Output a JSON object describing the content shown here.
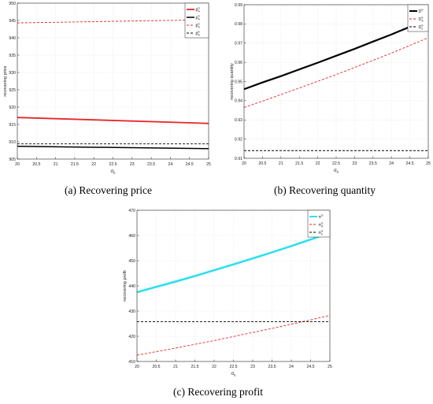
{
  "figures": [
    {
      "caption": "(a) Recovering price",
      "chart_data": {
        "type": "line",
        "xlabel": "σ_h",
        "xlabel_main": "σ",
        "xlabel_sub": "h",
        "ylabel": "recovering price",
        "xlim": [
          20,
          25
        ],
        "ylim": [
          905,
          950
        ],
        "xticks": [
          "20",
          "20.5",
          "21",
          "21.5",
          "22",
          "22.5",
          "23",
          "23.5",
          "24",
          "24.5",
          "25"
        ],
        "yticks": [
          "905",
          "910",
          "915",
          "920",
          "925",
          "930",
          "935",
          "940",
          "945",
          "950"
        ],
        "grid": true,
        "legend_position": "top-right",
        "legend_box_width": 30,
        "series": [
          {
            "name": "p̄_A^{S}",
            "main": "p̄",
            "sup": "S",
            "sub": "A",
            "color": "#e8262a",
            "dash": "",
            "width": 1.8,
            "x": [
              20,
              25
            ],
            "y": [
              917.0,
              915.3
            ]
          },
          {
            "name": "p_A^{S}",
            "main": "p",
            "sup": "S",
            "sub": "A",
            "color": "#000000",
            "dash": "",
            "width": 1.5,
            "x": [
              20,
              25
            ],
            "y": [
              908.7,
              908.0
            ]
          },
          {
            "name": "p̄_A^{S}",
            "main": "p̄",
            "sup": "S",
            "sub": "A",
            "color": "#e8262a",
            "dash": "3,2",
            "width": 0.9,
            "x": [
              20,
              25
            ],
            "y": [
              944.3,
              945.2
            ]
          },
          {
            "name": "p̂_A^{S}",
            "main": "p̂",
            "sup": "S",
            "sub": "A",
            "color": "#000000",
            "dash": "3,2",
            "width": 0.9,
            "x": [
              20,
              25
            ],
            "y": [
              909.4,
              909.4
            ]
          }
        ]
      }
    },
    {
      "caption": "(b) Recovering quantity",
      "chart_data": {
        "type": "line",
        "xlabel": "σ_h",
        "xlabel_main": "σ",
        "xlabel_sub": "h",
        "ylabel": "recovering quantity",
        "xlim": [
          20,
          25
        ],
        "ylim": [
          0.91,
          0.99
        ],
        "xticks": [
          "20",
          "20.5",
          "21",
          "21.5",
          "22",
          "22.5",
          "23",
          "23.5",
          "24",
          "24.5",
          "25"
        ],
        "yticks": [
          "0.91",
          "0.92",
          "0.93",
          "0.94",
          "0.95",
          "0.96",
          "0.97",
          "0.98",
          "0.99"
        ],
        "grid": true,
        "legend_position": "top-right",
        "legend_box_width": 26,
        "series": [
          {
            "name": "D^{S}",
            "main": "D",
            "sup": "S",
            "sub": "",
            "color": "#000000",
            "dash": "",
            "width": 2.2,
            "x": [
              20,
              20.5,
              21,
              21.5,
              22,
              22.5,
              23,
              23.5,
              24,
              24.5,
              25
            ],
            "y": [
              0.946,
              0.9495,
              0.9528,
              0.9563,
              0.9598,
              0.9634,
              0.967,
              0.9708,
              0.9745,
              0.9785,
              0.9825
            ]
          },
          {
            "name": "D_A^{S}",
            "main": "D",
            "sup": "S",
            "sub": "A",
            "color": "#e8262a",
            "dash": "3,2",
            "width": 0.9,
            "x": [
              20,
              20.5,
              21,
              21.5,
              22,
              22.5,
              23,
              23.5,
              24,
              24.5,
              25
            ],
            "y": [
              0.9365,
              0.9398,
              0.9432,
              0.9466,
              0.9501,
              0.9536,
              0.9573,
              0.961,
              0.9648,
              0.9688,
              0.9728
            ]
          },
          {
            "name": "D_e^{S}",
            "main": "D",
            "sup": "S",
            "sub": "e",
            "color": "#000000",
            "dash": "3,2",
            "width": 0.9,
            "x": [
              20,
              25
            ],
            "y": [
              0.914,
              0.914
            ]
          }
        ]
      }
    },
    {
      "caption": "(c) Recovering profit",
      "chart_data": {
        "type": "line",
        "xlabel": "σ_h",
        "xlabel_main": "σ",
        "xlabel_sub": "h",
        "ylabel": "recovering profit",
        "xlim": [
          20,
          25
        ],
        "ylim": [
          410,
          470
        ],
        "xticks": [
          "20",
          "20.5",
          "21",
          "21.5",
          "22",
          "22.5",
          "23",
          "23.5",
          "24",
          "24.5",
          "25"
        ],
        "yticks": [
          "410",
          "420",
          "430",
          "440",
          "450",
          "460",
          "470"
        ],
        "grid": true,
        "legend_position": "top-right",
        "legend_box_width": 28,
        "series": [
          {
            "name": "π^{S}",
            "main": "π",
            "sup": "S",
            "sub": "",
            "color": "#2de0ee",
            "dash": "",
            "width": 2.6,
            "x": [
              20,
              20.5,
              21,
              21.5,
              22,
              22.5,
              23,
              23.5,
              24,
              24.5,
              25
            ],
            "y": [
              437.5,
              439.6,
              441.7,
              443.9,
              446.2,
              448.5,
              450.9,
              453.3,
              455.8,
              458.4,
              461.0
            ]
          },
          {
            "name": "π_A^{S}",
            "main": "π",
            "sup": "S",
            "sub": "A",
            "color": "#e8262a",
            "dash": "3,2",
            "width": 0.9,
            "x": [
              20,
              20.5,
              21,
              21.5,
              22,
              22.5,
              23,
              23.5,
              24,
              24.5,
              25
            ],
            "y": [
              412.5,
              413.9,
              415.3,
              416.8,
              418.3,
              419.9,
              421.5,
              423.1,
              424.8,
              426.5,
              428.3
            ]
          },
          {
            "name": "π_e^{S}",
            "main": "π",
            "sup": "S",
            "sub": "e",
            "color": "#000000",
            "dash": "3,2",
            "width": 0.9,
            "x": [
              20,
              25
            ],
            "y": [
              425.8,
              425.8
            ]
          }
        ]
      }
    }
  ]
}
